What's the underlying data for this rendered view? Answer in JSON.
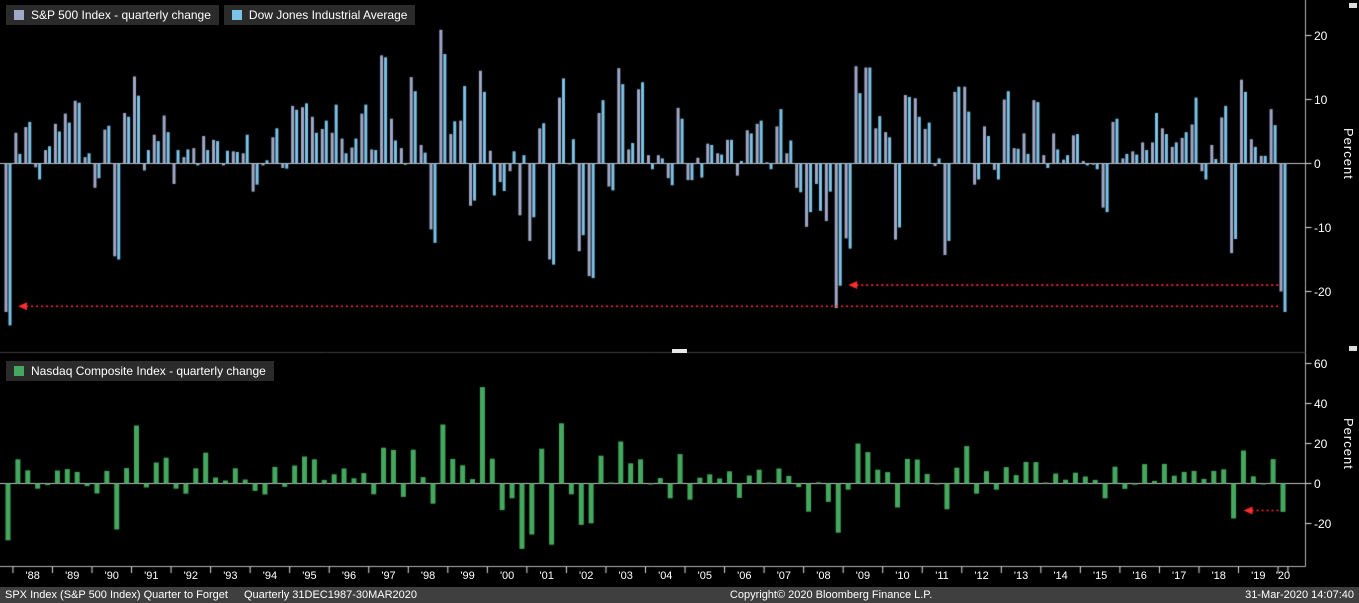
{
  "chart_data": [
    {
      "type": "bar",
      "panel": "top",
      "x_start": "1987Q4",
      "x_end": "2020Q1",
      "x_freq": "quarterly",
      "x_tick_labels": [
        "'88",
        "'89",
        "'90",
        "'91",
        "'92",
        "'93",
        "'94",
        "'95",
        "'96",
        "'97",
        "'98",
        "'99",
        "'00",
        "'01",
        "'02",
        "'03",
        "'04",
        "'05",
        "'06",
        "'07",
        "'08",
        "'09",
        "'10",
        "'11",
        "'12",
        "'13",
        "'14",
        "'15",
        "'16",
        "'17",
        "'18",
        "'19",
        "'20"
      ],
      "ylabel": "Percent",
      "yticks": [
        20,
        10,
        0,
        -10,
        -20
      ],
      "ylim": [
        -28,
        25
      ],
      "grid": false,
      "legend_position": "top-left",
      "series": [
        {
          "name": "S&P 500 Index - quarterly change",
          "color": "#9fa8c7",
          "values": [
            -23.2,
            4.8,
            5.7,
            -0.6,
            2.1,
            6.2,
            7.8,
            9.8,
            1.0,
            -3.8,
            5.3,
            -14.5,
            7.9,
            13.6,
            -1.1,
            4.5,
            7.5,
            -3.2,
            1.0,
            2.4,
            4.3,
            3.7,
            -0.3,
            1.9,
            1.6,
            -4.4,
            -0.3,
            4.1,
            -0.7,
            9.0,
            8.8,
            7.3,
            5.4,
            4.8,
            3.9,
            2.5,
            7.8,
            2.2,
            16.9,
            7.0,
            2.4,
            13.5,
            2.9,
            -10.3,
            20.9,
            4.6,
            6.7,
            -6.6,
            14.5,
            2.0,
            -2.9,
            -1.2,
            -8.1,
            -12.1,
            5.5,
            -15.0,
            10.3,
            -0.1,
            -13.7,
            -17.6,
            7.9,
            -3.6,
            14.9,
            2.2,
            11.6,
            1.3,
            1.3,
            -2.3,
            8.7,
            -2.6,
            0.9,
            3.1,
            1.6,
            3.7,
            -1.9,
            5.2,
            6.2,
            0.2,
            5.8,
            1.6,
            -3.8,
            -9.9,
            -3.2,
            -9.0,
            -22.6,
            -11.7,
            15.2,
            15.0,
            5.5,
            4.9,
            -11.9,
            10.7,
            10.2,
            5.4,
            -0.4,
            -14.3,
            11.2,
            12.0,
            -3.3,
            5.8,
            -1.0,
            10.0,
            2.4,
            4.7,
            9.9,
            1.3,
            4.7,
            0.6,
            4.4,
            0.4,
            -0.2,
            -6.9,
            6.5,
            0.8,
            1.9,
            3.3,
            3.3,
            5.5,
            2.6,
            4.0,
            6.1,
            -1.2,
            2.9,
            7.2,
            -14.0,
            13.1,
            3.8,
            1.2,
            8.5,
            -20.0
          ]
        },
        {
          "name": "Dow Jones Industrial Average",
          "color": "#7cc3e8",
          "values": [
            -25.3,
            1.5,
            6.5,
            -2.5,
            2.7,
            5.0,
            6.4,
            9.5,
            1.6,
            -2.3,
            5.9,
            -15.0,
            7.3,
            10.6,
            2.1,
            3.5,
            4.9,
            2.1,
            2.2,
            -0.3,
            2.1,
            3.5,
            2.0,
            1.8,
            4.5,
            -3.3,
            0.5,
            5.5,
            -0.8,
            8.4,
            9.4,
            4.8,
            6.7,
            9.2,
            1.6,
            3.9,
            9.2,
            2.1,
            16.6,
            3.6,
            -0.2,
            11.3,
            1.7,
            -12.4,
            17.1,
            6.6,
            12.1,
            -5.8,
            11.2,
            -5.0,
            -4.3,
            1.9,
            1.3,
            -8.4,
            6.3,
            -15.8,
            13.3,
            3.8,
            -11.2,
            -17.9,
            9.9,
            -4.2,
            12.4,
            3.2,
            12.7,
            -0.9,
            0.8,
            -3.4,
            7.0,
            -2.6,
            -2.2,
            2.9,
            1.4,
            3.7,
            0.4,
            4.7,
            6.7,
            -0.9,
            8.5,
            3.6,
            -4.5,
            -7.6,
            -7.4,
            -4.4,
            -19.1,
            -13.3,
            11.0,
            15.0,
            7.4,
            4.1,
            -10.0,
            10.4,
            7.3,
            6.4,
            0.8,
            -12.1,
            12.0,
            8.1,
            -2.5,
            4.3,
            -2.5,
            11.3,
            2.3,
            1.5,
            9.6,
            -0.7,
            2.2,
            1.3,
            4.6,
            -0.3,
            -0.9,
            -7.6,
            7.0,
            1.5,
            1.4,
            2.1,
            7.9,
            4.6,
            3.3,
            4.9,
            10.3,
            -2.5,
            0.7,
            9.0,
            -11.8,
            11.2,
            2.6,
            1.2,
            6.0,
            -23.2
          ]
        }
      ],
      "annotations": [
        {
          "type": "arrow",
          "style": "dotted",
          "color": "#ff2d2d",
          "y": -22.3,
          "from": "2020Q1",
          "to": "1987Q4"
        },
        {
          "type": "arrow",
          "style": "dotted",
          "color": "#ff2d2d",
          "y": -19.0,
          "from": "2020Q1",
          "to": "2008Q4"
        }
      ]
    },
    {
      "type": "bar",
      "panel": "bottom",
      "x_start": "1987Q4",
      "x_end": "2020Q1",
      "x_freq": "quarterly",
      "x_tick_labels": [
        "'88",
        "'89",
        "'90",
        "'91",
        "'92",
        "'93",
        "'94",
        "'95",
        "'96",
        "'97",
        "'98",
        "'99",
        "'00",
        "'01",
        "'02",
        "'03",
        "'04",
        "'05",
        "'06",
        "'07",
        "'08",
        "'09",
        "'10",
        "'11",
        "'12",
        "'13",
        "'14",
        "'15",
        "'16",
        "'17",
        "'18",
        "'19",
        "'20"
      ],
      "ylabel": "Percent",
      "yticks": [
        60,
        40,
        20,
        0,
        -20
      ],
      "ylim": [
        -40,
        62
      ],
      "grid": false,
      "legend_position": "top-left",
      "series": [
        {
          "name": "Nasdaq Composite Index - quarterly change",
          "color": "#44a95e",
          "values": [
            -28.4,
            12.1,
            6.6,
            -2.6,
            -0.8,
            6.5,
            7.2,
            5.8,
            -1.3,
            -5.0,
            6.3,
            -23.0,
            7.7,
            29.0,
            -2.0,
            10.5,
            12.9,
            -2.6,
            -5.1,
            7.6,
            15.4,
            3.0,
            1.5,
            7.6,
            2.0,
            -3.7,
            -5.5,
            8.3,
            -1.7,
            9.0,
            13.5,
            12.1,
            1.8,
            4.6,
            7.5,
            2.6,
            5.2,
            -5.4,
            17.9,
            16.8,
            -6.7,
            16.9,
            3.2,
            -10.1,
            29.5,
            12.3,
            9.1,
            2.2,
            48.2,
            12.4,
            -13.3,
            -7.4,
            -32.7,
            -25.5,
            17.4,
            -30.6,
            30.1,
            -5.4,
            -20.7,
            -19.9,
            13.9,
            0.4,
            21.0,
            10.1,
            12.1,
            -0.5,
            2.7,
            -7.4,
            14.7,
            -8.1,
            2.9,
            4.6,
            2.5,
            6.1,
            -7.2,
            4.0,
            6.9,
            0.3,
            7.5,
            3.8,
            -1.8,
            -14.1,
            0.6,
            -9.2,
            -24.6,
            -3.1,
            20.0,
            15.7,
            6.9,
            5.7,
            -12.0,
            12.3,
            12.0,
            4.8,
            -0.3,
            -12.9,
            7.9,
            18.7,
            -5.1,
            6.2,
            -3.1,
            8.2,
            4.2,
            10.8,
            10.7,
            0.5,
            5.0,
            1.9,
            5.4,
            3.5,
            1.8,
            -7.4,
            8.4,
            -2.7,
            -0.6,
            9.7,
            1.3,
            9.8,
            3.9,
            5.8,
            6.3,
            2.3,
            6.3,
            7.1,
            -17.5,
            16.5,
            3.6,
            -0.1,
            12.2,
            -14.2
          ]
        }
      ],
      "annotations": [
        {
          "type": "arrow",
          "style": "dotted",
          "color": "#ff2d2d",
          "y": -13.5,
          "from": "2020Q1",
          "to": "2018Q4"
        }
      ]
    }
  ],
  "footer": {
    "security": "SPX Index (S&P 500 Index) Quarter to Forget",
    "range": "Quarterly 31DEC1987-30MAR2020",
    "copyright": "Copyright© 2020 Bloomberg Finance L.P.",
    "timestamp": "31-Mar-2020 14:07:40"
  }
}
